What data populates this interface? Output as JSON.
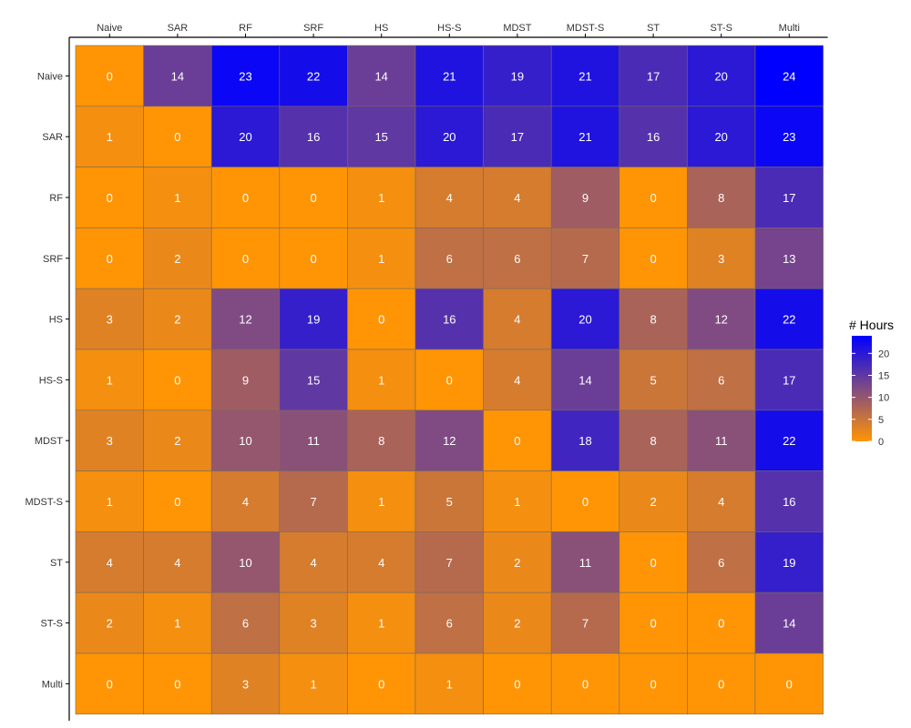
{
  "chart_data": {
    "type": "heatmap",
    "title": "",
    "xlabel": "",
    "ylabel": "",
    "x_categories": [
      "Naive",
      "SAR",
      "RF",
      "SRF",
      "HS",
      "HS-S",
      "MDST",
      "MDST-S",
      "ST",
      "ST-S",
      "Multi"
    ],
    "y_categories": [
      "Naive",
      "SAR",
      "RF",
      "SRF",
      "HS",
      "HS-S",
      "MDST",
      "MDST-S",
      "ST",
      "ST-S",
      "Multi"
    ],
    "values": [
      [
        0,
        14,
        23,
        22,
        14,
        21,
        19,
        21,
        17,
        20,
        24
      ],
      [
        1,
        0,
        20,
        16,
        15,
        20,
        17,
        21,
        16,
        20,
        23
      ],
      [
        0,
        1,
        0,
        0,
        1,
        4,
        4,
        9,
        0,
        8,
        17
      ],
      [
        0,
        2,
        0,
        0,
        1,
        6,
        6,
        7,
        0,
        3,
        13
      ],
      [
        3,
        2,
        12,
        19,
        0,
        16,
        4,
        20,
        8,
        12,
        22
      ],
      [
        1,
        0,
        9,
        15,
        1,
        0,
        4,
        14,
        5,
        6,
        17
      ],
      [
        3,
        2,
        10,
        11,
        8,
        12,
        0,
        18,
        8,
        11,
        22
      ],
      [
        1,
        0,
        4,
        7,
        1,
        5,
        1,
        0,
        2,
        4,
        16
      ],
      [
        4,
        4,
        10,
        4,
        4,
        7,
        2,
        11,
        0,
        6,
        19
      ],
      [
        2,
        1,
        6,
        3,
        1,
        6,
        2,
        7,
        0,
        0,
        14
      ],
      [
        0,
        0,
        3,
        1,
        0,
        1,
        0,
        0,
        0,
        0,
        0
      ]
    ],
    "x_axis_position": "top",
    "color_scale": {
      "low": "#FF9505",
      "high": "#0000FF",
      "min": 0,
      "max": 24
    },
    "legend": {
      "title": "# Hours",
      "ticks": [
        0,
        5,
        10,
        15,
        20
      ],
      "position": "right"
    },
    "grid": false
  }
}
